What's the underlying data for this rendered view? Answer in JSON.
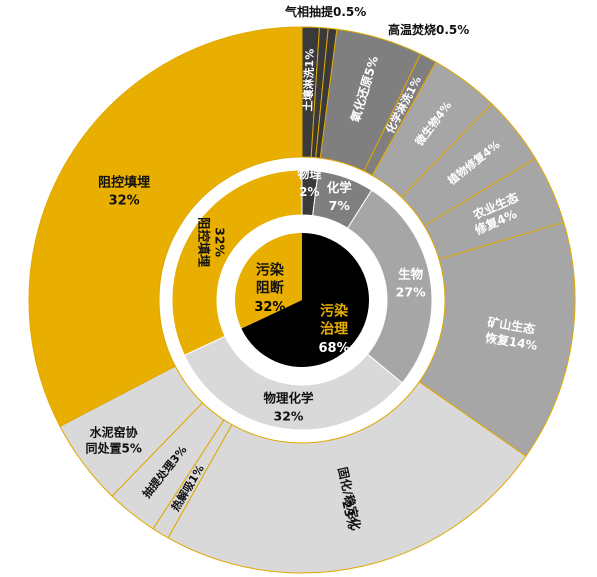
{
  "chart_data": {
    "type": "sunburst",
    "colors": {
      "gold": "#E8AE00",
      "black": "#000000",
      "light_gray": "#D9D9D9",
      "medium_gray": "#A6A6A6",
      "dark_gray": "#7F7F7F",
      "charcoal": "#3A3A3A",
      "gold_border": "#E0A800",
      "white": "#FFFFFF"
    },
    "inner_ring": [
      {
        "name": "污染治理",
        "value": 68,
        "label": "68%",
        "color": "#000000",
        "text_color": "#E8AE00"
      },
      {
        "name": "污染阻断",
        "value": 32,
        "label": "32%",
        "color": "#E8AE00",
        "text_color": "#111111"
      }
    ],
    "middle_ring": [
      {
        "name": "物理",
        "value": 2,
        "label": "2%",
        "color": "#3A3A3A",
        "text_color": "#FFFFFF"
      },
      {
        "name": "化学",
        "value": 7,
        "label": "7%",
        "color": "#7F7F7F",
        "text_color": "#FFFFFF"
      },
      {
        "name": "生物",
        "value": 27,
        "label": "27%",
        "color": "#A6A6A6",
        "text_color": "#FFFFFF"
      },
      {
        "name": "物理化学",
        "value": 32,
        "label": "32%",
        "color": "#D9D9D9",
        "text_color": "#111111"
      },
      {
        "name": "阻控填埋",
        "value": 32,
        "label": "32%",
        "color": "#E8AE00",
        "text_color": "#111111"
      }
    ],
    "outer_ring": [
      {
        "name": "土壤淋洗",
        "value": 1,
        "label": "1%",
        "color": "#3A3A3A",
        "text_color": "#FFFFFF"
      },
      {
        "name": "气相抽提",
        "value": 0.5,
        "label": "0.5%",
        "color": "#3A3A3A",
        "text_color": "#111111",
        "callout": true
      },
      {
        "name": "高温焚烧",
        "value": 0.5,
        "label": "0.5%",
        "color": "#3A3A3A",
        "text_color": "#111111",
        "callout": true
      },
      {
        "name": "氧化还原",
        "value": 5,
        "label": "5%",
        "color": "#7F7F7F",
        "text_color": "#FFFFFF"
      },
      {
        "name": "化学淋洗",
        "value": 1,
        "label": "1%",
        "color": "#7F7F7F",
        "text_color": "#FFFFFF"
      },
      {
        "name": "微生物",
        "value": 4,
        "label": "4%",
        "color": "#A6A6A6",
        "text_color": "#FFFFFF"
      },
      {
        "name": "植物修复",
        "value": 4,
        "label": "4%",
        "color": "#A6A6A6",
        "text_color": "#FFFFFF"
      },
      {
        "name": "农业生态修复",
        "value": 4,
        "label": "4%",
        "color": "#A6A6A6",
        "text_color": "#FFFFFF",
        "line1": "农业生态",
        "line2": "修复4%"
      },
      {
        "name": "矿山生态恢复",
        "value": 14,
        "label": "14%",
        "color": "#A6A6A6",
        "text_color": "#FFFFFF",
        "line1": "矿山生态",
        "line2": "恢复14%"
      },
      {
        "name": "固化/稳定化",
        "value": 23,
        "label": "23%",
        "color": "#D9D9D9",
        "text_color": "#111111"
      },
      {
        "name": "热解吸",
        "value": 1,
        "label": "1%",
        "color": "#D9D9D9",
        "text_color": "#111111"
      },
      {
        "name": "抽提处理",
        "value": 3,
        "label": "3%",
        "color": "#D9D9D9",
        "text_color": "#111111"
      },
      {
        "name": "水泥窑协同处置",
        "value": 5,
        "label": "5%",
        "color": "#D9D9D9",
        "text_color": "#111111",
        "line1": "水泥窑协",
        "line2": "同处置5%"
      },
      {
        "name": "阻控填埋",
        "value": 32,
        "label": "32%",
        "color": "#E8AE00",
        "text_color": "#111111"
      }
    ]
  }
}
